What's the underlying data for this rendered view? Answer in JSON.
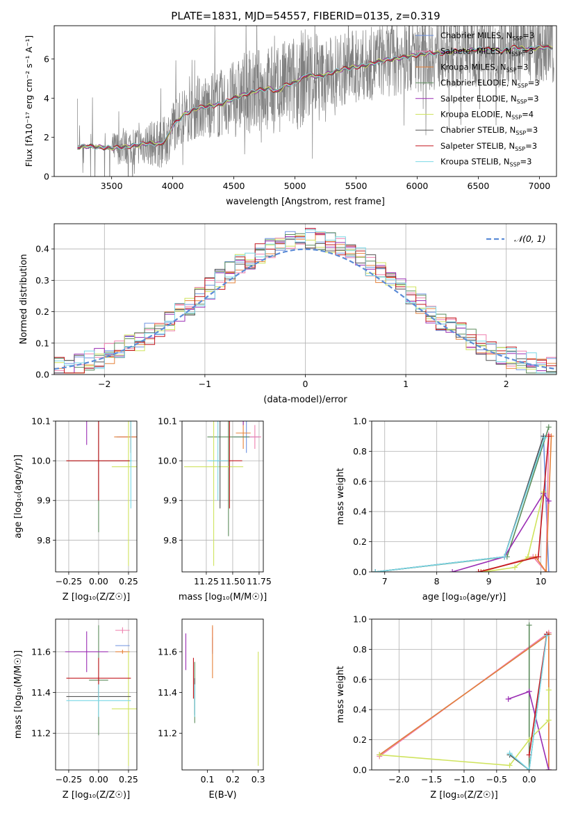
{
  "figure_title": "PLATE=1831, MJD=54557, FIBERID=0135, z=0.319",
  "colors": {
    "Chabrier MILES": "#6d92e0",
    "Salpeter MILES": "#ef7fae",
    "Kroupa MILES": "#e58139",
    "Chabrier ELODIE": "#5c8c5c",
    "Salpeter ELODIE": "#9a2cb3",
    "Kroupa ELODIE": "#cfe35d",
    "Chabrier STELIB": "#555555",
    "Salpeter STELIB": "#c2141b",
    "Kroupa STELIB": "#79d8e6",
    "data": "#808080",
    "normal": "#5b8bd6"
  },
  "chart_data": [
    {
      "type": "line",
      "panel": "spectrum",
      "title": "PLATE=1831, MJD=54557, FIBERID=0135, z=0.319",
      "xlabel": "wavelength [Angstrom, rest frame]",
      "ylabel": "Flux [f_λ 10^-17 erg cm^-2 s^-1 A^-1]",
      "xlim": [
        3030,
        7140
      ],
      "ylim": [
        0,
        7.7
      ],
      "xticks": [
        "3500",
        "4000",
        "4500",
        "5000",
        "5500",
        "6000",
        "6500",
        "7000"
      ],
      "yticks": [
        "0",
        "2",
        "4",
        "6"
      ],
      "legend_position": "top-right",
      "legend": [
        {
          "name": "Chabrier MILES",
          "nssp": "3"
        },
        {
          "name": "Salpeter MILES",
          "nssp": "3"
        },
        {
          "name": "Kroupa MILES",
          "nssp": "3"
        },
        {
          "name": "Chabrier ELODIE",
          "nssp": "3"
        },
        {
          "name": "Salpeter ELODIE",
          "nssp": "3"
        },
        {
          "name": "Kroupa ELODIE",
          "nssp": "4"
        },
        {
          "name": "Chabrier STELIB",
          "nssp": "3"
        },
        {
          "name": "Salpeter STELIB",
          "nssp": "3"
        },
        {
          "name": "Kroupa STELIB",
          "nssp": "3"
        }
      ],
      "model_x": [
        3220,
        3300,
        3400,
        3500,
        3600,
        3700,
        3800,
        3900,
        3950,
        4000,
        4100,
        4200,
        4300,
        4400,
        4500,
        4600,
        4700,
        4800,
        4860,
        4900,
        5000,
        5100,
        5200,
        5300,
        5400,
        5500,
        5600,
        5700,
        5800,
        5900,
        6000,
        6100,
        6200,
        6300,
        6400,
        6500,
        6600,
        6700,
        6800,
        6900,
        7000,
        7100
      ],
      "model_y": [
        1.5,
        1.55,
        1.5,
        1.45,
        1.5,
        1.6,
        1.7,
        1.65,
        1.9,
        2.6,
        3.2,
        3.5,
        3.6,
        3.7,
        4.0,
        4.2,
        4.4,
        4.5,
        4.3,
        4.6,
        4.8,
        5.2,
        5.1,
        5.3,
        5.5,
        5.6,
        5.7,
        5.9,
        6.0,
        6.1,
        6.2,
        6.3,
        6.3,
        6.4,
        6.4,
        6.5,
        6.5,
        6.4,
        6.6,
        6.5,
        6.6,
        6.6
      ]
    },
    {
      "type": "bar",
      "panel": "residual histogram",
      "xlabel": "(data-model)/error",
      "ylabel": "Normed distribution",
      "xlim": [
        -2.5,
        2.5
      ],
      "ylim": [
        0,
        0.48
      ],
      "xticks": [
        "−2",
        "−1",
        "0",
        "1",
        "2"
      ],
      "yticks": [
        "0.0",
        "0.1",
        "0.2",
        "0.3",
        "0.4"
      ],
      "legend_position": "top-right",
      "legend_label": "𝒩(0, 1)",
      "grid": true,
      "bin_width": 0.1
    },
    {
      "type": "scatter",
      "panel": "age vs Z",
      "xlabel": "Z [log10(Z/Z☉)]",
      "ylabel": "age  [log10(age/yr)]",
      "xlim": [
        -0.36,
        0.32
      ],
      "ylim": [
        9.72,
        10.1
      ],
      "xticks": [
        "−0.25",
        "0.00",
        "0.25"
      ],
      "yticks": [
        "9.8",
        "9.9",
        "10.0",
        "10.1"
      ],
      "grid": true,
      "points": [
        {
          "model": "Chabrier MILES",
          "x": 0.27,
          "y": 10.06,
          "ex": 0.12,
          "ey": 0.04
        },
        {
          "model": "Salpeter MILES",
          "x": 0.27,
          "y": 10.06,
          "ex": 0.1,
          "ey": 0.03
        },
        {
          "model": "Kroupa MILES",
          "x": 0.27,
          "y": 10.06,
          "ex": 0.14,
          "ey": 0.04
        },
        {
          "model": "Chabrier ELODIE",
          "x": 0.0,
          "y": 10.0,
          "ex": 0.27,
          "ey": 0.18
        },
        {
          "model": "Salpeter ELODIE",
          "x": -0.1,
          "y": 10.14,
          "ex": 0.18,
          "ey": 0.1
        },
        {
          "model": "Kroupa ELODIE",
          "x": 0.25,
          "y": 9.985,
          "ex": 0.14,
          "ey": 0.25
        },
        {
          "model": "Chabrier STELIB",
          "x": 0.0,
          "y": 10.0,
          "ex": 0.27,
          "ey": 0.1
        },
        {
          "model": "Salpeter STELIB",
          "x": 0.0,
          "y": 10.0,
          "ex": 0.27,
          "ey": 0.1
        },
        {
          "model": "Kroupa STELIB",
          "x": 0.27,
          "y": 10.0,
          "ex": 0.01,
          "ey": 0.12
        }
      ]
    },
    {
      "type": "scatter",
      "panel": "age vs mass",
      "xlabel": "mass [log10(M/M☉)]",
      "ylabel": "",
      "xlim": [
        11.02,
        11.79
      ],
      "ylim": [
        9.72,
        10.1
      ],
      "xticks": [
        "11.25",
        "11.50",
        "11.75"
      ],
      "yticks": [
        "9.8",
        "9.9",
        "10.0",
        "10.1"
      ],
      "grid": true,
      "points": [
        {
          "model": "Chabrier MILES",
          "x": 11.63,
          "y": 10.06,
          "ex": 0.12,
          "ey": 0.04
        },
        {
          "model": "Salpeter MILES",
          "x": 11.71,
          "y": 10.06,
          "ex": 0.06,
          "ey": 0.03
        },
        {
          "model": "Kroupa MILES",
          "x": 11.6,
          "y": 10.07,
          "ex": 0.07,
          "ey": 0.04
        },
        {
          "model": "Chabrier ELODIE",
          "x": 11.46,
          "y": 10.06,
          "ex": 0.2,
          "ey": 0.25
        },
        {
          "model": "Salpeter ELODIE",
          "x": 11.6,
          "y": 10.14,
          "ex": 0.08,
          "ey": 0.05
        },
        {
          "model": "Kroupa ELODIE",
          "x": 11.32,
          "y": 9.985,
          "ex": 0.28,
          "ey": 0.25
        },
        {
          "model": "Chabrier STELIB",
          "x": 11.38,
          "y": 10.0,
          "ex": 0.1,
          "ey": 0.12
        },
        {
          "model": "Salpeter STELIB",
          "x": 11.47,
          "y": 10.0,
          "ex": 0.12,
          "ey": 0.12
        },
        {
          "model": "Kroupa STELIB",
          "x": 11.36,
          "y": 10.0,
          "ex": 0.1,
          "ey": 0.1
        }
      ]
    },
    {
      "type": "line",
      "panel": "mass weight vs age",
      "xlabel": "age  [log10(age/yr)]",
      "ylabel": "mass weight",
      "xlim": [
        6.75,
        10.3
      ],
      "ylim": [
        0,
        1.0
      ],
      "xticks": [
        "7",
        "8",
        "9",
        "10"
      ],
      "yticks": [
        "0.0",
        "0.2",
        "0.4",
        "0.6",
        "0.8",
        "1.0"
      ],
      "grid": true,
      "series": [
        {
          "name": "Chabrier MILES",
          "x": [
            6.82,
            9.3,
            10.05,
            10.15
          ],
          "y": [
            0.0,
            0.1,
            0.9,
            0.0
          ]
        },
        {
          "name": "Salpeter MILES",
          "x": [
            8.85,
            9.85,
            10.1,
            10.15
          ],
          "y": [
            0.0,
            0.1,
            0.0,
            0.91
          ]
        },
        {
          "name": "Kroupa MILES",
          "x": [
            8.85,
            9.9,
            10.1,
            10.2
          ],
          "y": [
            0.0,
            0.1,
            0.0,
            0.9
          ]
        },
        {
          "name": "Chabrier ELODIE",
          "x": [
            6.82,
            9.35,
            10.15
          ],
          "y": [
            0.0,
            0.1,
            0.96
          ]
        },
        {
          "name": "Salpeter ELODIE",
          "x": [
            8.3,
            9.3,
            10.05,
            10.15
          ],
          "y": [
            0.0,
            0.1,
            0.52,
            0.47
          ]
        },
        {
          "name": "Kroupa ELODIE",
          "x": [
            8.9,
            9.5,
            9.75,
            10.05
          ],
          "y": [
            0.0,
            0.03,
            0.1,
            0.53
          ]
        },
        {
          "name": "Chabrier STELIB",
          "x": [
            6.82,
            9.3,
            10.05
          ],
          "y": [
            0.0,
            0.1,
            0.9
          ]
        },
        {
          "name": "Salpeter STELIB",
          "x": [
            8.8,
            9.95,
            10.15
          ],
          "y": [
            0.0,
            0.1,
            0.9
          ]
        },
        {
          "name": "Kroupa STELIB",
          "x": [
            6.82,
            9.3,
            10.07
          ],
          "y": [
            0.0,
            0.1,
            0.89
          ]
        }
      ]
    },
    {
      "type": "scatter",
      "panel": "mass vs Z",
      "xlabel": "Z [log10(Z/Z☉)]",
      "ylabel": "mass [log10(M/M☉)]",
      "xlim": [
        -0.36,
        0.32
      ],
      "ylim": [
        11.02,
        11.76
      ],
      "xticks": [
        "−0.25",
        "0.00",
        "0.25"
      ],
      "yticks": [
        "11.2",
        "11.4",
        "11.6"
      ],
      "grid": true,
      "points": [
        {
          "model": "Chabrier MILES",
          "x": 0.2,
          "y": 11.63,
          "ex": 0.06,
          "ey": 0.0
        },
        {
          "model": "Salpeter MILES",
          "x": 0.2,
          "y": 11.705,
          "ex": 0.06,
          "ey": 0.015
        },
        {
          "model": "Kroupa MILES",
          "x": 0.2,
          "y": 11.6,
          "ex": 0.06,
          "ey": 0.01
        },
        {
          "model": "Chabrier ELODIE",
          "x": 0.0,
          "y": 11.46,
          "ex": 0.08,
          "ey": 0.27
        },
        {
          "model": "Salpeter ELODIE",
          "x": -0.1,
          "y": 11.6,
          "ex": 0.18,
          "ey": 0.1
        },
        {
          "model": "Kroupa ELODIE",
          "x": 0.25,
          "y": 11.32,
          "ex": 0.14,
          "ey": 0.28
        },
        {
          "model": "Chabrier STELIB",
          "x": 0.0,
          "y": 11.38,
          "ex": 0.27,
          "ey": 0.1
        },
        {
          "model": "Salpeter STELIB",
          "x": 0.0,
          "y": 11.47,
          "ex": 0.27,
          "ey": 0.1
        },
        {
          "model": "Kroupa STELIB",
          "x": 0.0,
          "y": 11.36,
          "ex": 0.27,
          "ey": 0.08
        }
      ]
    },
    {
      "type": "scatter",
      "panel": "mass vs E(B-V)",
      "xlabel": "E(B-V)",
      "ylabel": "",
      "xlim": [
        0.0,
        0.32
      ],
      "ylim": [
        11.02,
        11.76
      ],
      "xticks": [
        "0.1",
        "0.2",
        "0.3"
      ],
      "yticks": [
        "11.2",
        "11.4",
        "11.6"
      ],
      "grid": false,
      "points": [
        {
          "model": "Chabrier MILES",
          "x": 0.12,
          "y": 11.63,
          "ey": 0.04
        },
        {
          "model": "Salpeter MILES",
          "x": 0.12,
          "y": 11.66,
          "ey": 0.06
        },
        {
          "model": "Kroupa MILES",
          "x": 0.12,
          "y": 11.6,
          "ey": 0.13
        },
        {
          "model": "Chabrier ELODIE",
          "x": 0.05,
          "y": 11.4,
          "ey": 0.15
        },
        {
          "model": "Salpeter ELODIE",
          "x": 0.015,
          "y": 11.6,
          "ey": 0.09
        },
        {
          "model": "Kroupa ELODIE",
          "x": 0.3,
          "y": 11.32,
          "ey": 0.28
        },
        {
          "model": "Chabrier STELIB",
          "x": 0.05,
          "y": 11.38,
          "ey": 0.09
        },
        {
          "model": "Salpeter STELIB",
          "x": 0.045,
          "y": 11.47,
          "ey": 0.1
        },
        {
          "model": "Kroupa STELIB",
          "x": 0.05,
          "y": 11.36,
          "ey": 0.08
        }
      ]
    },
    {
      "type": "line",
      "panel": "mass weight vs Z",
      "xlabel": "Z [log10(Z/Z☉)]",
      "ylabel": "mass weight",
      "xlim": [
        -2.42,
        0.42
      ],
      "ylim": [
        0,
        1.0
      ],
      "xticks": [
        "−2.0",
        "−1.5",
        "−1.0",
        "−0.5",
        "0.0"
      ],
      "yticks": [
        "0.0",
        "0.2",
        "0.4",
        "0.6",
        "0.8",
        "1.0"
      ],
      "grid": true,
      "series": [
        {
          "name": "Chabrier MILES",
          "x": [
            -2.3,
            0.3,
            0.3
          ],
          "y": [
            0.1,
            0.9,
            0.0
          ]
        },
        {
          "name": "Salpeter MILES",
          "x": [
            -2.3,
            0.3,
            0.3
          ],
          "y": [
            0.09,
            0.91,
            0.0
          ]
        },
        {
          "name": "Kroupa MILES",
          "x": [
            -2.3,
            0.3,
            0.3
          ],
          "y": [
            0.1,
            0.9,
            0.0
          ]
        },
        {
          "name": "Chabrier ELODIE",
          "x": [
            -0.3,
            0.0,
            0.0
          ],
          "y": [
            0.1,
            0.0,
            0.96
          ]
        },
        {
          "name": "Salpeter ELODIE",
          "x": [
            -0.32,
            0.0,
            0.3
          ],
          "y": [
            0.47,
            0.52,
            0.0
          ]
        },
        {
          "name": "Kroupa ELODIE",
          "x": [
            -2.3,
            -0.3,
            0.0,
            0.3,
            0.3
          ],
          "y": [
            0.1,
            0.03,
            0.2,
            0.33,
            0.53
          ]
        },
        {
          "name": "Chabrier STELIB",
          "x": [
            -0.3,
            0.0,
            0.27
          ],
          "y": [
            0.1,
            0.0,
            0.9
          ]
        },
        {
          "name": "Salpeter STELIB",
          "x": [
            0.0,
            0.27
          ],
          "y": [
            0.1,
            0.9
          ]
        },
        {
          "name": "Kroupa STELIB",
          "x": [
            -0.3,
            0.0,
            0.27
          ],
          "y": [
            0.11,
            0.0,
            0.89
          ]
        }
      ]
    }
  ]
}
